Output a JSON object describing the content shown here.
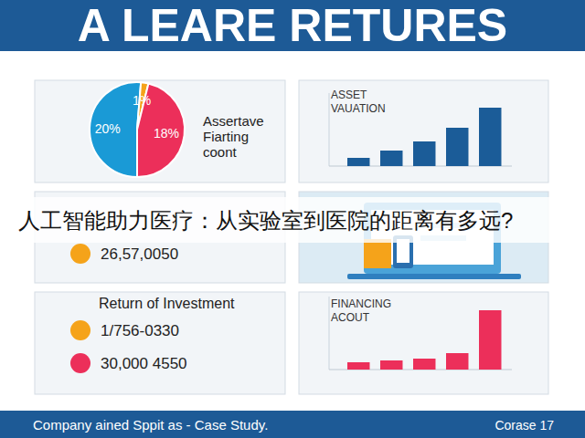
{
  "title": "A LEARE RETURES",
  "caption": "人工智能助力医疗：从实验室到医院的距离有多远?",
  "stat": {
    "text": "26,57,0050",
    "color": "#f5a31a"
  },
  "roi": {
    "title": "Return of Investment",
    "items": [
      {
        "text": "1/756-0330",
        "color": "#f5a31a"
      },
      {
        "text": "30,000 4550",
        "color": "#ec2f5a"
      }
    ]
  },
  "footer": {
    "left": "Company ained Sppit as - Case Study.",
    "right": "Corase 17"
  },
  "chart_data": [
    {
      "type": "pie",
      "title": "Assertave Fiarting coont",
      "values": [
        20,
        1,
        18
      ],
      "value_labels": [
        "20%",
        "1%",
        "18%"
      ],
      "colors": [
        "#1a9ad6",
        "#f5a31a",
        "#ec2f5a"
      ],
      "data_labels": true
    },
    {
      "type": "bar",
      "title": "ASSET VAUATION",
      "categories": [
        null,
        null,
        null,
        null,
        null
      ],
      "values": [
        9,
        17,
        27,
        42,
        64
      ],
      "color": "#1b5c98",
      "ylim": [
        0,
        80
      ],
      "yticks": [],
      "tick_labels": false
    },
    {
      "type": "bar",
      "title": "FINANCING ACOUT",
      "categories": [
        null,
        null,
        null,
        null,
        null
      ],
      "values": [
        8,
        10,
        12,
        18,
        65
      ],
      "color": "#ec2f5a",
      "ylim": [
        0,
        80
      ],
      "yticks": [],
      "tick_labels": false
    }
  ]
}
